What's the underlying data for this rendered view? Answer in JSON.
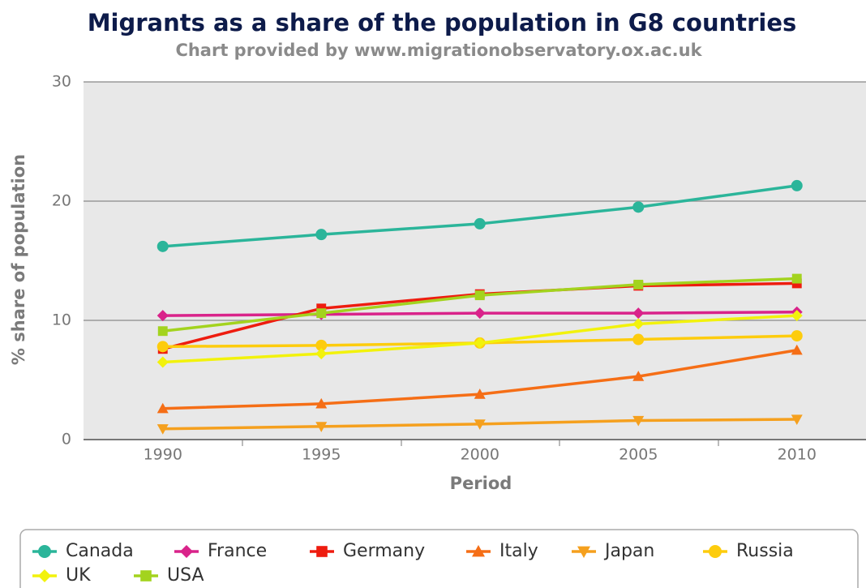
{
  "chart_data": {
    "type": "line",
    "title": "Migrants as a share of the population in G8 countries",
    "subtitle": "Chart provided by www.migrationobservatory.ox.ac.uk",
    "x_label": "Period",
    "y_label": "% share of population",
    "categories": [
      "1990",
      "1995",
      "2000",
      "2005",
      "2010"
    ],
    "ylim": [
      0,
      30
    ],
    "yticks": [
      0,
      10,
      20,
      30
    ],
    "grid": true,
    "legend": "bottom",
    "series": [
      {
        "name": "Canada",
        "color": "#2bb59a",
        "marker": "circle",
        "values": [
          16.2,
          17.2,
          18.1,
          19.5,
          21.3
        ]
      },
      {
        "name": "France",
        "color": "#d9238a",
        "marker": "diamond",
        "values": [
          10.4,
          10.5,
          10.6,
          10.6,
          10.7
        ]
      },
      {
        "name": "Germany",
        "color": "#ee1c0f",
        "marker": "square",
        "values": [
          7.6,
          11.0,
          12.2,
          12.9,
          13.1
        ]
      },
      {
        "name": "Italy",
        "color": "#f56e16",
        "marker": "triangle",
        "values": [
          2.6,
          3.0,
          3.8,
          5.3,
          7.5
        ]
      },
      {
        "name": "Japan",
        "color": "#f5a01e",
        "marker": "triangle-down",
        "values": [
          0.9,
          1.1,
          1.3,
          1.6,
          1.7
        ]
      },
      {
        "name": "Russia",
        "color": "#fdcc0d",
        "marker": "circle",
        "values": [
          7.8,
          7.9,
          8.1,
          8.4,
          8.7
        ]
      },
      {
        "name": "UK",
        "color": "#f2f20c",
        "marker": "diamond",
        "values": [
          6.5,
          7.2,
          8.1,
          9.7,
          10.4
        ]
      },
      {
        "name": "USA",
        "color": "#a3d31e",
        "marker": "square",
        "values": [
          9.1,
          10.6,
          12.1,
          13.0,
          13.5
        ]
      }
    ]
  }
}
